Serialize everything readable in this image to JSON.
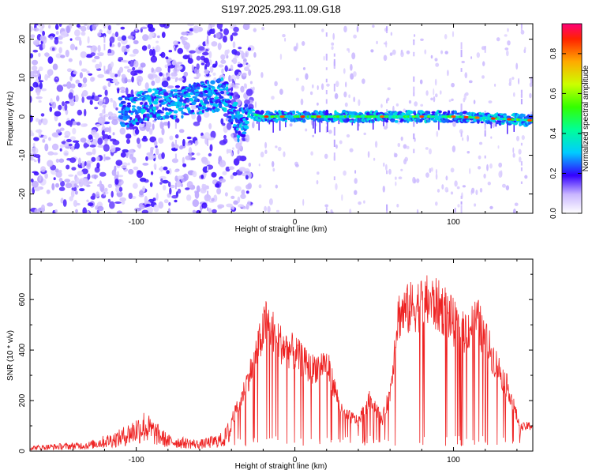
{
  "title": "S197.2025.293.11.09.G18",
  "spectrogram": {
    "type": "heatmap",
    "xlabel": "Height of straight line (km)",
    "ylabel": "Frequency (Hz)",
    "xlim": [
      -167,
      150
    ],
    "ylim": [
      -25,
      24
    ],
    "xticks": [
      -100,
      0,
      100
    ],
    "yticks": [
      -20,
      -10,
      0,
      10,
      20
    ],
    "colorbar": {
      "label": "Normalized spectral amplitude",
      "range": [
        0,
        0.95
      ],
      "ticks": [
        "0.0",
        "0.2",
        "0.4",
        "0.6",
        "0.8"
      ],
      "tick_values": [
        0.0,
        0.2,
        0.4,
        0.6,
        0.8
      ]
    },
    "ridge": [
      {
        "x": -110,
        "f": 1
      },
      {
        "x": -90,
        "f": 3
      },
      {
        "x": -70,
        "f": 4
      },
      {
        "x": -55,
        "f": 5
      },
      {
        "x": -45,
        "f": 6
      },
      {
        "x": -40,
        "f": 2
      },
      {
        "x": -35,
        "f": -3
      },
      {
        "x": -30,
        "f": 1
      },
      {
        "x": -20,
        "f": 0
      },
      {
        "x": 0,
        "f": 0
      },
      {
        "x": 50,
        "f": 0
      },
      {
        "x": 100,
        "f": 0
      },
      {
        "x": 150,
        "f": -1
      }
    ]
  },
  "snr": {
    "type": "line",
    "xlabel": "Height of straight line (km)",
    "ylabel": "SNR (10 * v/v)",
    "xlim": [
      -167,
      150
    ],
    "ylim": [
      0,
      760
    ],
    "xticks": [
      -100,
      0,
      100
    ],
    "yticks": [
      0,
      200,
      400,
      600
    ],
    "color": "#ee2222",
    "envelope": [
      {
        "x": -167,
        "y": 20
      },
      {
        "x": -130,
        "y": 35
      },
      {
        "x": -110,
        "y": 80
      },
      {
        "x": -95,
        "y": 150
      },
      {
        "x": -80,
        "y": 60
      },
      {
        "x": -60,
        "y": 40
      },
      {
        "x": -45,
        "y": 70
      },
      {
        "x": -35,
        "y": 200
      },
      {
        "x": -25,
        "y": 400
      },
      {
        "x": -18,
        "y": 560
      },
      {
        "x": -8,
        "y": 450
      },
      {
        "x": 0,
        "y": 420
      },
      {
        "x": 10,
        "y": 350
      },
      {
        "x": 20,
        "y": 380
      },
      {
        "x": 30,
        "y": 160
      },
      {
        "x": 40,
        "y": 130
      },
      {
        "x": 48,
        "y": 230
      },
      {
        "x": 55,
        "y": 130
      },
      {
        "x": 60,
        "y": 250
      },
      {
        "x": 65,
        "y": 580
      },
      {
        "x": 75,
        "y": 620
      },
      {
        "x": 85,
        "y": 640
      },
      {
        "x": 95,
        "y": 600
      },
      {
        "x": 105,
        "y": 500
      },
      {
        "x": 115,
        "y": 560
      },
      {
        "x": 125,
        "y": 400
      },
      {
        "x": 135,
        "y": 260
      },
      {
        "x": 142,
        "y": 100
      },
      {
        "x": 150,
        "y": 110
      }
    ]
  }
}
